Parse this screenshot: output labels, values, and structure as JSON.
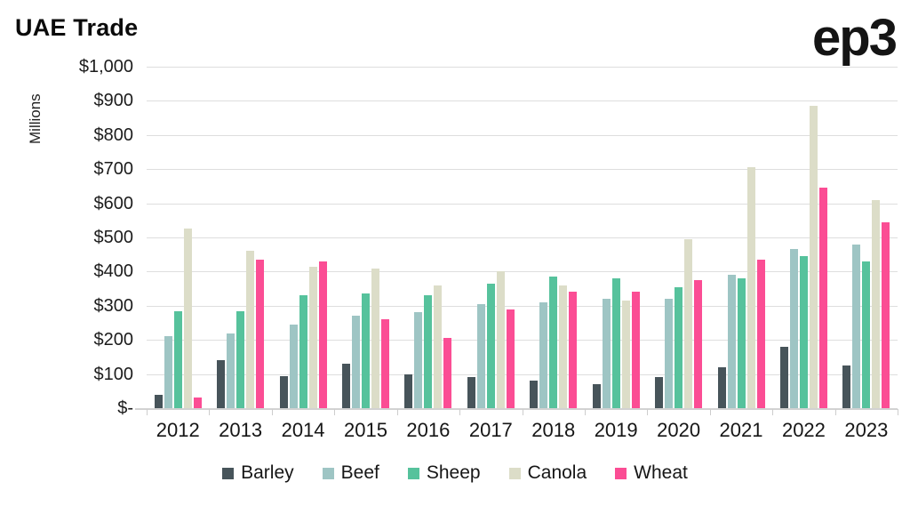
{
  "header": {
    "title": "UAE Trade",
    "logo": "ep3"
  },
  "chart_data": {
    "type": "bar",
    "title": "UAE Trade",
    "xlabel": "",
    "ylabel": "Millions",
    "ylim": [
      0,
      1000
    ],
    "ytick_step": 100,
    "ytick_labels": [
      "$-",
      "$100",
      "$200",
      "$300",
      "$400",
      "$500",
      "$600",
      "$700",
      "$800",
      "$900",
      "$1,000"
    ],
    "grid": true,
    "legend_position": "bottom",
    "categories": [
      "2012",
      "2013",
      "2014",
      "2015",
      "2016",
      "2017",
      "2018",
      "2019",
      "2020",
      "2021",
      "2022",
      "2023"
    ],
    "series": [
      {
        "name": "Barley",
        "color": "#47545a",
        "values": [
          40,
          140,
          95,
          130,
          100,
          90,
          80,
          70,
          90,
          120,
          180,
          125
        ]
      },
      {
        "name": "Beef",
        "color": "#9ec5c4",
        "values": [
          210,
          220,
          245,
          270,
          280,
          305,
          310,
          320,
          320,
          390,
          465,
          480
        ]
      },
      {
        "name": "Sheep",
        "color": "#56c29c",
        "values": [
          285,
          285,
          330,
          335,
          330,
          365,
          385,
          380,
          355,
          380,
          445,
          430
        ]
      },
      {
        "name": "Canola",
        "color": "#dcddc8",
        "values": [
          525,
          460,
          415,
          410,
          360,
          400,
          360,
          315,
          495,
          705,
          885,
          610
        ]
      },
      {
        "name": "Wheat",
        "color": "#fb4d94",
        "values": [
          30,
          435,
          430,
          260,
          205,
          290,
          340,
          340,
          375,
          435,
          645,
          545
        ]
      }
    ]
  }
}
